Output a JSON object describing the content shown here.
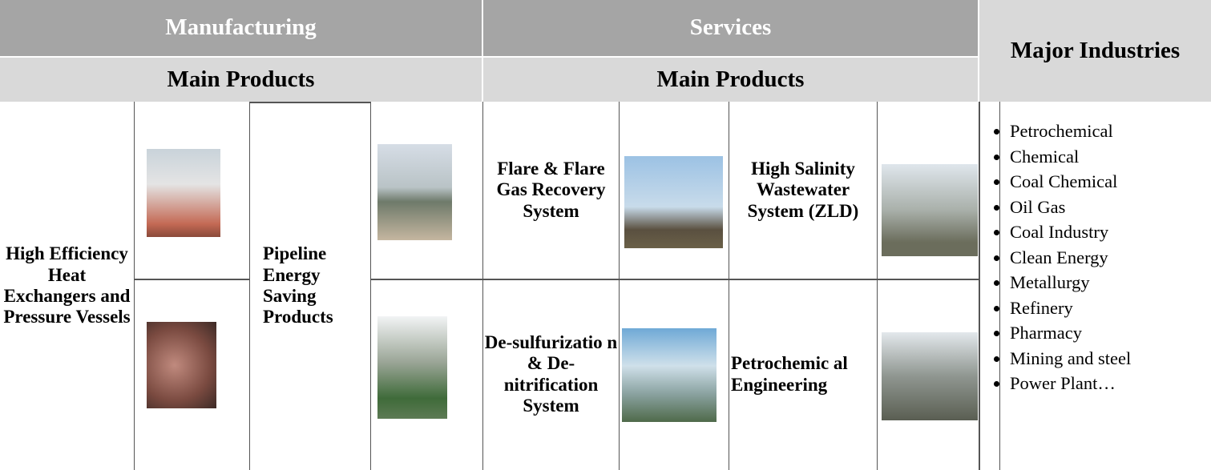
{
  "header": {
    "manufacturing": "Manufacturing",
    "services": "Services",
    "major_industries": "Major Industries",
    "manufacturing_sub": "Main Products",
    "services_sub": "Main Products"
  },
  "manufacturing": {
    "heat_exchangers": "High Efficiency Heat Exchangers and Pressure Vessels",
    "pipeline": "Pipeline Energy Saving Products"
  },
  "services": {
    "flare": "Flare & Flare Gas Recovery System",
    "salinity": "High Salinity Wastewater System (ZLD)",
    "desulfurization": "De-sulfurizatio n & De-nitrification System",
    "petrochemical": "Petrochemic al Engineering"
  },
  "industries": [
    "Petrochemical",
    "Chemical",
    "Coal Chemical",
    "Oil Gas",
    "Coal Industry",
    "Clean Energy",
    "Metallurgy",
    "Refinery",
    "Pharmacy",
    "Mining and steel",
    "Power Plant…"
  ]
}
